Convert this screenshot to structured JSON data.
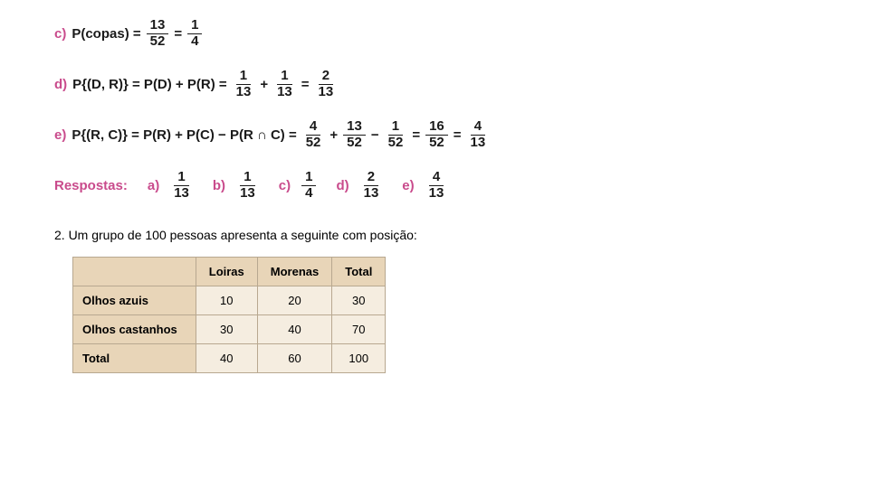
{
  "equations": {
    "c": {
      "label": "c)",
      "lhs": "P(copas) =",
      "frac1": {
        "num": "13",
        "den": "52"
      },
      "eq": "=",
      "frac2": {
        "num": "1",
        "den": "4"
      }
    },
    "d": {
      "label": "d)",
      "lhs": "P{(D, R)} = P(D) + P(R) =",
      "frac1": {
        "num": "1",
        "den": "13"
      },
      "plus": "+",
      "frac2": {
        "num": "1",
        "den": "13"
      },
      "eq": "=",
      "frac3": {
        "num": "2",
        "den": "13"
      }
    },
    "e": {
      "label": "e)",
      "lhs": "P{(R, C)} = P(R) + P(C) − P(R ∩ C) =",
      "frac1": {
        "num": "4",
        "den": "52"
      },
      "plus": "+",
      "frac2": {
        "num": "13",
        "den": "52"
      },
      "minus": "−",
      "frac3": {
        "num": "1",
        "den": "52"
      },
      "eq1": "=",
      "frac4": {
        "num": "16",
        "den": "52"
      },
      "eq2": "=",
      "frac5": {
        "num": "4",
        "den": "13"
      }
    }
  },
  "respostas": {
    "label": "Respostas:",
    "items": [
      {
        "letter": "a)",
        "num": "1",
        "den": "13"
      },
      {
        "letter": "b)",
        "num": "1",
        "den": "13"
      },
      {
        "letter": "c)",
        "num": "1",
        "den": "4"
      },
      {
        "letter": "d)",
        "num": "2",
        "den": "13"
      },
      {
        "letter": "e)",
        "num": "4",
        "den": "13"
      }
    ]
  },
  "problem2": {
    "text": "2. Um grupo de 100 pessoas apresenta a seguinte com posição:",
    "table": {
      "columns": [
        "Loiras",
        "Morenas",
        "Total"
      ],
      "rows": [
        {
          "header": "Olhos azuis",
          "cells": [
            "10",
            "20",
            "30"
          ]
        },
        {
          "header": "Olhos castanhos",
          "cells": [
            "30",
            "40",
            "70"
          ]
        },
        {
          "header": "Total",
          "cells": [
            "40",
            "60",
            "100"
          ]
        }
      ]
    }
  },
  "colors": {
    "accent": "#c94b8c",
    "text": "#1a1a1a",
    "table_header_bg": "#e8d5b8",
    "table_cell_bg": "#f5ede0",
    "table_border": "#b8a890"
  }
}
